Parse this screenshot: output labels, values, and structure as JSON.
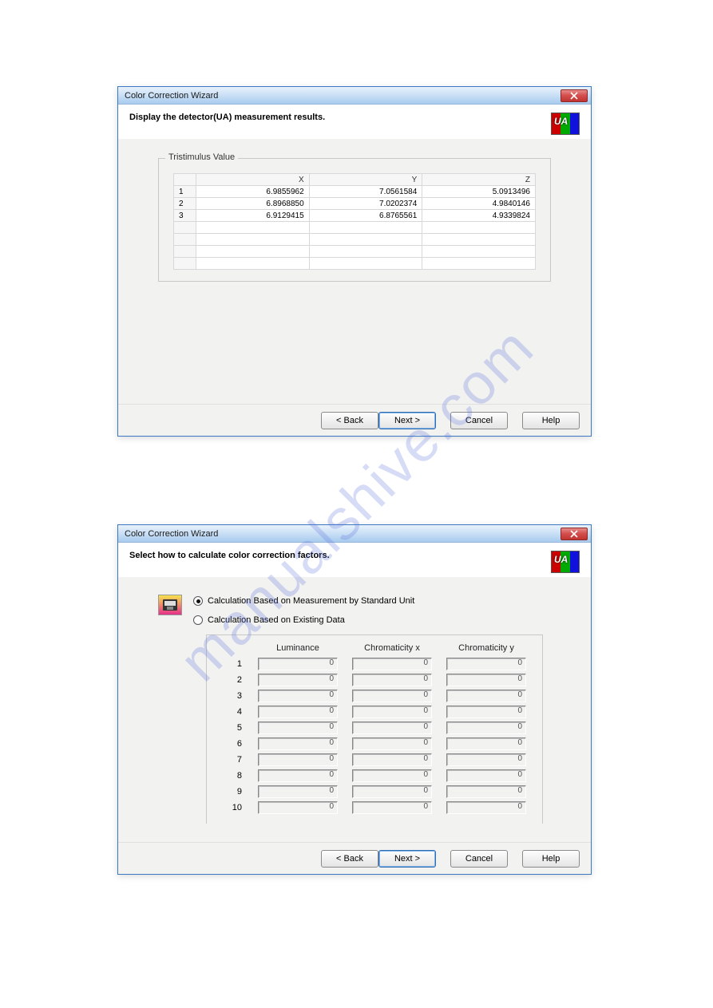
{
  "watermark_text": "manualshive.com",
  "dialog1": {
    "title": "Color Correction Wizard",
    "header": "Display the detector(UA) measurement results.",
    "group_label": "Tristimulus Value",
    "columns": [
      "X",
      "Y",
      "Z"
    ],
    "rows": [
      {
        "n": "1",
        "x": "6.9855962",
        "y": "7.0561584",
        "z": "5.0913496"
      },
      {
        "n": "2",
        "x": "6.8968850",
        "y": "7.0202374",
        "z": "4.9840146"
      },
      {
        "n": "3",
        "x": "6.9129415",
        "y": "6.8765561",
        "z": "4.9339824"
      }
    ],
    "empty_row_count": 4,
    "buttons": {
      "back": "< Back",
      "next": "Next >",
      "cancel": "Cancel",
      "help": "Help"
    }
  },
  "dialog2": {
    "title": "Color Correction Wizard",
    "header": "Select how to calculate color correction factors.",
    "radio1": "Calculation Based on Measurement by Standard Unit",
    "radio2": "Calculation Based on Existing Data",
    "columns": [
      "Luminance",
      "Chromaticity x",
      "Chromaticity y"
    ],
    "rows": [
      {
        "n": "1",
        "l": "0",
        "cx": "0",
        "cy": "0"
      },
      {
        "n": "2",
        "l": "0",
        "cx": "0",
        "cy": "0"
      },
      {
        "n": "3",
        "l": "0",
        "cx": "0",
        "cy": "0"
      },
      {
        "n": "4",
        "l": "0",
        "cx": "0",
        "cy": "0"
      },
      {
        "n": "5",
        "l": "0",
        "cx": "0",
        "cy": "0"
      },
      {
        "n": "6",
        "l": "0",
        "cx": "0",
        "cy": "0"
      },
      {
        "n": "7",
        "l": "0",
        "cx": "0",
        "cy": "0"
      },
      {
        "n": "8",
        "l": "0",
        "cx": "0",
        "cy": "0"
      },
      {
        "n": "9",
        "l": "0",
        "cx": "0",
        "cy": "0"
      },
      {
        "n": "10",
        "l": "0",
        "cx": "0",
        "cy": "0"
      }
    ],
    "buttons": {
      "back": "< Back",
      "next": "Next >",
      "cancel": "Cancel",
      "help": "Help"
    }
  },
  "colors": {
    "titlebar_start": "#e9f2fc",
    "titlebar_end": "#a8cbef",
    "close_red": "#c13330",
    "body_bg": "#f2f2f0",
    "border": "#c8c8c8",
    "default_btn_border": "#2f6db0"
  }
}
